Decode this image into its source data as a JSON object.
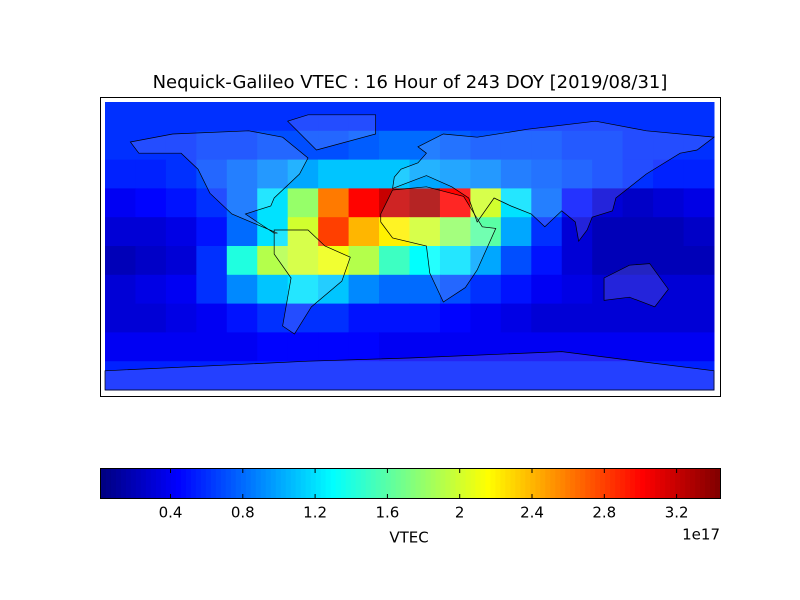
{
  "chart_data": {
    "type": "heatmap",
    "title": "Nequick-Galileo VTEC : 16 Hour of 243 DOY [2019/08/31]",
    "values": [
      [
        0.6,
        0.6,
        0.6,
        0.6,
        0.6,
        0.6,
        0.6,
        0.6,
        0.6,
        0.6,
        0.6,
        0.6,
        0.6,
        0.6,
        0.6,
        0.6,
        0.6,
        0.6,
        0.6,
        0.6
      ],
      [
        0.6,
        0.6,
        0.6,
        0.65,
        0.65,
        0.7,
        0.7,
        0.7,
        0.75,
        0.8,
        0.8,
        0.75,
        0.7,
        0.7,
        0.7,
        0.65,
        0.65,
        0.6,
        0.6,
        0.6
      ],
      [
        0.55,
        0.55,
        0.6,
        0.7,
        0.8,
        0.9,
        1.0,
        1.1,
        1.1,
        1.1,
        1.0,
        0.95,
        0.9,
        0.8,
        0.75,
        0.7,
        0.65,
        0.6,
        0.55,
        0.55
      ],
      [
        0.4,
        0.45,
        0.5,
        0.6,
        0.8,
        1.2,
        1.8,
        2.6,
        3.0,
        3.2,
        3.3,
        3.0,
        2.0,
        1.2,
        0.8,
        0.5,
        0.3,
        0.25,
        0.3,
        0.35
      ],
      [
        0.3,
        0.3,
        0.35,
        0.5,
        0.8,
        1.2,
        2.0,
        2.8,
        2.4,
        2.2,
        2.0,
        1.8,
        1.6,
        1.0,
        0.6,
        0.3,
        0.2,
        0.2,
        0.2,
        0.25
      ],
      [
        0.2,
        0.25,
        0.3,
        0.6,
        1.4,
        1.9,
        2.0,
        2.1,
        1.9,
        1.5,
        1.3,
        1.2,
        1.0,
        0.7,
        0.5,
        0.3,
        0.2,
        0.2,
        0.2,
        0.2
      ],
      [
        0.3,
        0.35,
        0.4,
        0.6,
        0.9,
        1.1,
        1.2,
        1.1,
        0.9,
        0.8,
        0.8,
        0.7,
        0.6,
        0.5,
        0.4,
        0.35,
        0.3,
        0.3,
        0.3,
        0.3
      ],
      [
        0.3,
        0.3,
        0.35,
        0.4,
        0.5,
        0.6,
        0.6,
        0.6,
        0.5,
        0.5,
        0.5,
        0.45,
        0.4,
        0.35,
        0.3,
        0.3,
        0.3,
        0.3,
        0.3,
        0.3
      ],
      [
        0.4,
        0.4,
        0.4,
        0.4,
        0.4,
        0.45,
        0.45,
        0.45,
        0.45,
        0.4,
        0.4,
        0.4,
        0.4,
        0.4,
        0.4,
        0.4,
        0.4,
        0.4,
        0.4,
        0.4
      ],
      [
        0.55,
        0.55,
        0.55,
        0.55,
        0.55,
        0.55,
        0.55,
        0.55,
        0.55,
        0.55,
        0.55,
        0.55,
        0.55,
        0.55,
        0.55,
        0.55,
        0.55,
        0.55,
        0.55,
        0.55
      ]
    ],
    "colormap": "jet",
    "colorbar": {
      "label": "VTEC",
      "offset_label": "1e17",
      "clim": [
        0.01,
        3.44
      ],
      "ticks": [
        0.4,
        0.8,
        1.2,
        1.6,
        2.0,
        2.4,
        2.8,
        3.2
      ]
    }
  }
}
